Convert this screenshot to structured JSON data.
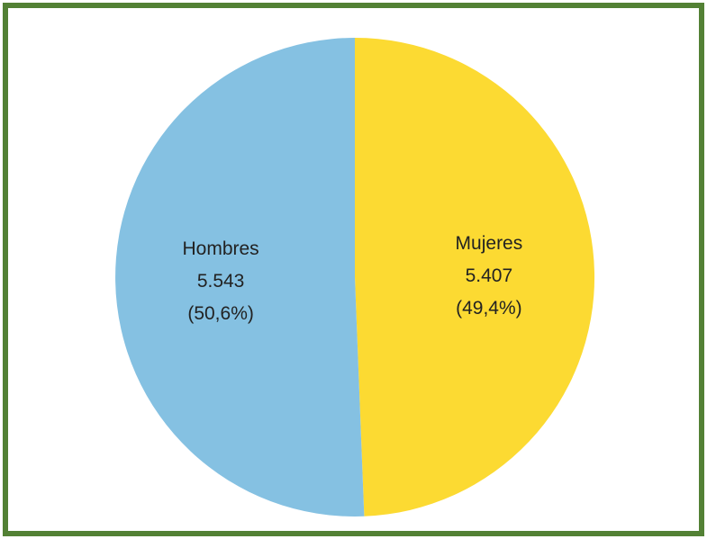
{
  "chart_data": {
    "type": "pie",
    "title": "",
    "slices": [
      {
        "name": "Mujeres",
        "value": 5407,
        "value_label": "5.407",
        "percent": 49.4,
        "percent_label": "(49,4%)",
        "color": "#FCDA32"
      },
      {
        "name": "Hombres",
        "value": 5543,
        "value_label": "5.543",
        "percent": 50.6,
        "percent_label": "(50,6%)",
        "color": "#85C1E2"
      }
    ],
    "start_direction": "12 o'clock",
    "direction": "clockwise",
    "legend": "none"
  },
  "frame": {
    "border_color": "#538135"
  }
}
